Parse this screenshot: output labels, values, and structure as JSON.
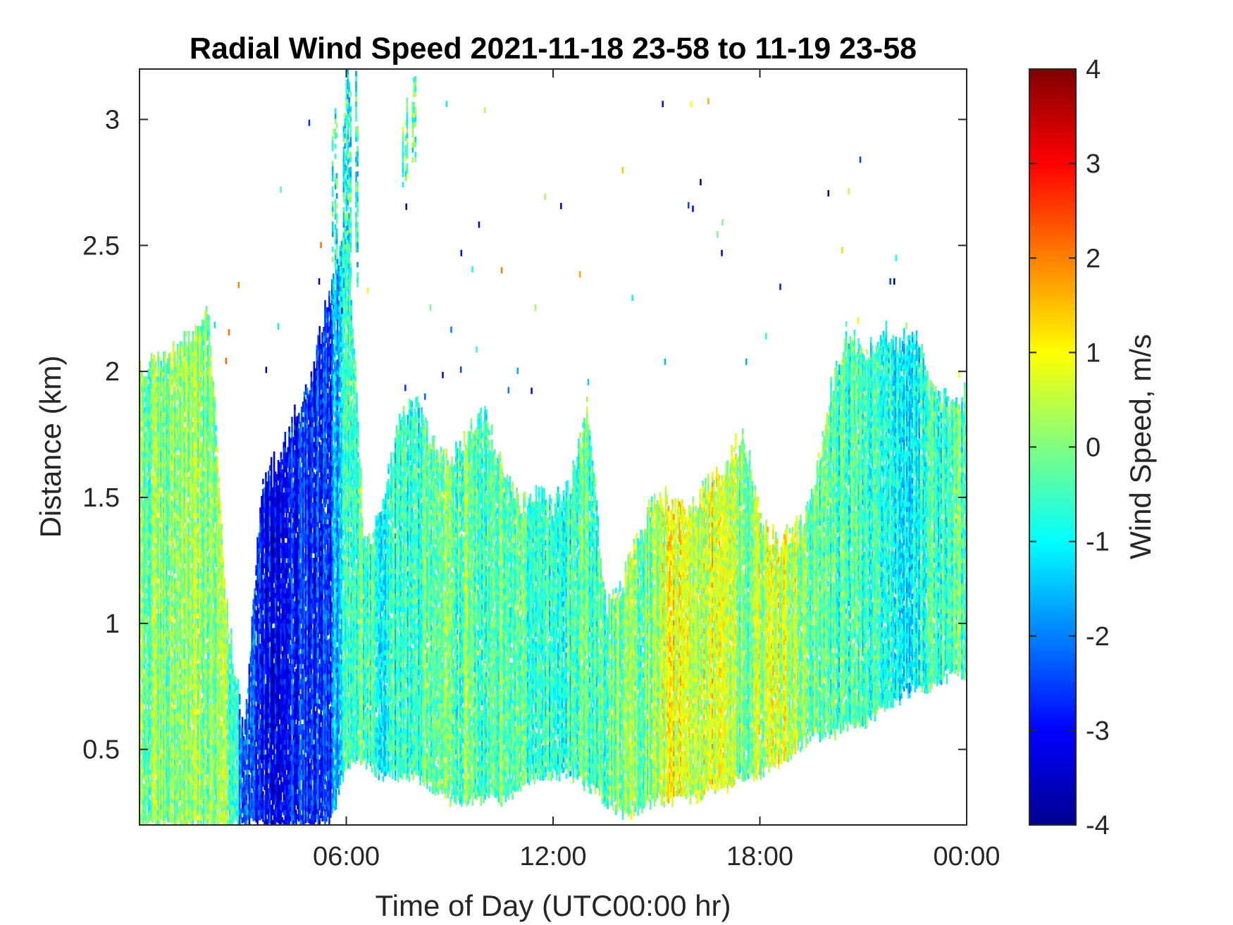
{
  "chart_data": {
    "type": "heatmap",
    "title": "Radial Wind Speed 2021-11-18 23-58 to 11-19 23-58",
    "xlabel": "Time of Day (UTC00:00 hr)",
    "ylabel": "Distance (km)",
    "x_unit": "hours",
    "xlim": [
      0,
      24
    ],
    "ylim": [
      0.2,
      3.2
    ],
    "x_ticks": [
      6,
      12,
      18,
      24
    ],
    "x_tick_labels": [
      "06:00",
      "12:00",
      "18:00",
      "00:00"
    ],
    "y_ticks": [
      0.5,
      1,
      1.5,
      2,
      2.5,
      3
    ],
    "y_tick_labels": [
      "0.5",
      "1",
      "1.5",
      "2",
      "2.5",
      "3"
    ],
    "colorbar": {
      "label": "Wind Speed, m/s",
      "colormap": "jet",
      "clim": [
        -4,
        4
      ],
      "ticks": [
        -4,
        -3,
        -2,
        -1,
        0,
        1,
        2,
        3,
        4
      ],
      "tick_labels": [
        "-4",
        "-3",
        "-2",
        "-1",
        "0",
        "1",
        "2",
        "3",
        "4"
      ],
      "colors": [
        "#00008f",
        "#0000ff",
        "#0080ff",
        "#00ffff",
        "#80ff80",
        "#ffff00",
        "#ff8000",
        "#ff0000",
        "#800000"
      ]
    },
    "grid": false,
    "data_coverage": [
      {
        "t": 0.0,
        "top": 2.02,
        "bottom": 0.2,
        "mean_speed": 0.0
      },
      {
        "t": 0.5,
        "top": 2.02,
        "bottom": 0.2,
        "mean_speed": 0.1
      },
      {
        "t": 1.0,
        "top": 2.05,
        "bottom": 0.2,
        "mean_speed": 0.0
      },
      {
        "t": 1.5,
        "top": 2.15,
        "bottom": 0.2,
        "mean_speed": 0.2
      },
      {
        "t": 2.0,
        "top": 2.2,
        "bottom": 0.2,
        "mean_speed": 0.1
      },
      {
        "t": 2.5,
        "top": 1.05,
        "bottom": 0.2,
        "mean_speed": 0.3
      },
      {
        "t": 3.0,
        "top": 0.55,
        "bottom": 0.2,
        "mean_speed": -2.2
      },
      {
        "t": 3.5,
        "top": 1.5,
        "bottom": 0.2,
        "mean_speed": -2.8
      },
      {
        "t": 4.0,
        "top": 1.65,
        "bottom": 0.2,
        "mean_speed": -3.0
      },
      {
        "t": 4.5,
        "top": 1.8,
        "bottom": 0.2,
        "mean_speed": -2.6
      },
      {
        "t": 5.0,
        "top": 2.0,
        "bottom": 0.2,
        "mean_speed": -2.8
      },
      {
        "t": 5.5,
        "top": 2.3,
        "bottom": 0.2,
        "mean_speed": -2.5
      },
      {
        "t": 6.0,
        "top": 2.6,
        "bottom": 0.45,
        "mean_speed": -0.5
      },
      {
        "t": 6.5,
        "top": 1.3,
        "bottom": 0.45,
        "mean_speed": -0.4
      },
      {
        "t": 7.0,
        "top": 1.4,
        "bottom": 0.4,
        "mean_speed": -0.8
      },
      {
        "t": 7.5,
        "top": 1.8,
        "bottom": 0.4,
        "mean_speed": -0.6
      },
      {
        "t": 8.0,
        "top": 1.85,
        "bottom": 0.4,
        "mean_speed": -0.5
      },
      {
        "t": 8.5,
        "top": 1.7,
        "bottom": 0.35,
        "mean_speed": -0.4
      },
      {
        "t": 9.0,
        "top": 1.6,
        "bottom": 0.3,
        "mean_speed": -0.3
      },
      {
        "t": 9.5,
        "top": 1.75,
        "bottom": 0.3,
        "mean_speed": -0.2
      },
      {
        "t": 10.0,
        "top": 1.8,
        "bottom": 0.3,
        "mean_speed": -0.4
      },
      {
        "t": 10.5,
        "top": 1.6,
        "bottom": 0.3,
        "mean_speed": -0.3
      },
      {
        "t": 11.0,
        "top": 1.45,
        "bottom": 0.35,
        "mean_speed": -0.5
      },
      {
        "t": 11.5,
        "top": 1.5,
        "bottom": 0.4,
        "mean_speed": -0.5
      },
      {
        "t": 12.0,
        "top": 1.45,
        "bottom": 0.4,
        "mean_speed": -0.6
      },
      {
        "t": 12.5,
        "top": 1.55,
        "bottom": 0.4,
        "mean_speed": -0.5
      },
      {
        "t": 13.0,
        "top": 1.85,
        "bottom": 0.35,
        "mean_speed": -0.4
      },
      {
        "t": 13.5,
        "top": 1.05,
        "bottom": 0.3,
        "mean_speed": -0.3
      },
      {
        "t": 14.0,
        "top": 1.15,
        "bottom": 0.25,
        "mean_speed": 0.2
      },
      {
        "t": 14.5,
        "top": 1.35,
        "bottom": 0.25,
        "mean_speed": 0.0
      },
      {
        "t": 15.0,
        "top": 1.5,
        "bottom": 0.3,
        "mean_speed": 0.3
      },
      {
        "t": 15.5,
        "top": 1.45,
        "bottom": 0.3,
        "mean_speed": 0.8
      },
      {
        "t": 16.0,
        "top": 1.45,
        "bottom": 0.3,
        "mean_speed": 0.2
      },
      {
        "t": 16.5,
        "top": 1.55,
        "bottom": 0.35,
        "mean_speed": 0.9
      },
      {
        "t": 17.0,
        "top": 1.6,
        "bottom": 0.35,
        "mean_speed": 0.7
      },
      {
        "t": 17.5,
        "top": 1.75,
        "bottom": 0.4,
        "mean_speed": -0.2
      },
      {
        "t": 18.0,
        "top": 1.4,
        "bottom": 0.4,
        "mean_speed": 0.5
      },
      {
        "t": 18.5,
        "top": 1.3,
        "bottom": 0.45,
        "mean_speed": 0.6
      },
      {
        "t": 19.0,
        "top": 1.35,
        "bottom": 0.5,
        "mean_speed": 0.3
      },
      {
        "t": 19.5,
        "top": 1.5,
        "bottom": 0.55,
        "mean_speed": 0.0
      },
      {
        "t": 20.0,
        "top": 1.9,
        "bottom": 0.55,
        "mean_speed": -0.3
      },
      {
        "t": 20.5,
        "top": 2.15,
        "bottom": 0.6,
        "mean_speed": -0.5
      },
      {
        "t": 21.0,
        "top": 2.05,
        "bottom": 0.6,
        "mean_speed": -0.4
      },
      {
        "t": 21.5,
        "top": 2.15,
        "bottom": 0.65,
        "mean_speed": -0.6
      },
      {
        "t": 22.0,
        "top": 2.1,
        "bottom": 0.7,
        "mean_speed": -0.8
      },
      {
        "t": 22.5,
        "top": 2.15,
        "bottom": 0.75,
        "mean_speed": -1.0
      },
      {
        "t": 23.0,
        "top": 1.9,
        "bottom": 0.75,
        "mean_speed": -0.6
      },
      {
        "t": 23.5,
        "top": 1.85,
        "bottom": 0.8,
        "mean_speed": -0.4
      },
      {
        "t": 24.0,
        "top": 1.9,
        "bottom": 0.8,
        "mean_speed": -0.3
      }
    ],
    "high_altitude_patches": [
      {
        "t_start": 7.5,
        "t_end": 8.0,
        "bottom": 2.7,
        "top": 3.2,
        "mean_speed": -0.3
      },
      {
        "t_start": 5.5,
        "t_end": 6.5,
        "bottom": 2.3,
        "top": 3.2,
        "mean_speed": -0.8
      }
    ]
  }
}
